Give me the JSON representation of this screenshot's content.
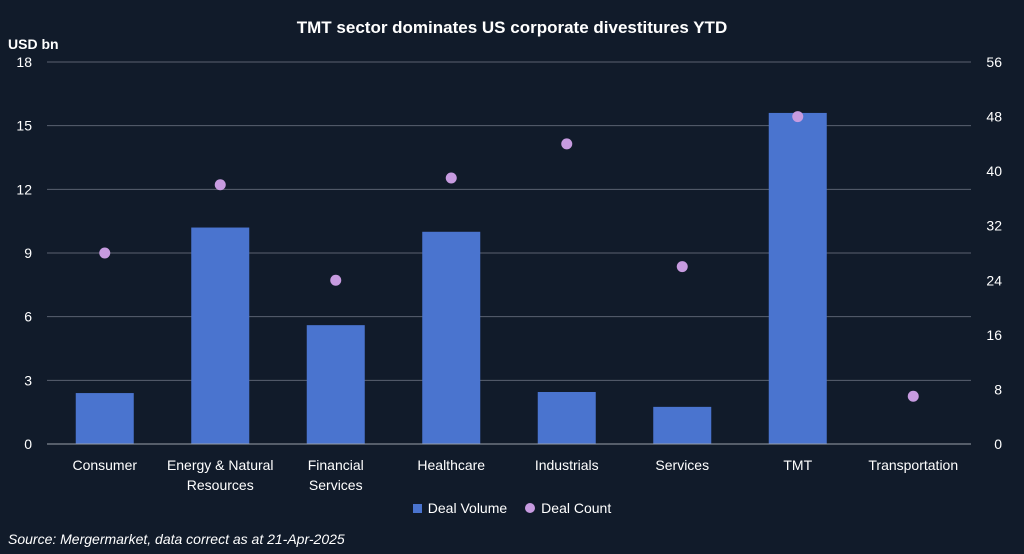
{
  "chart_data": {
    "type": "bar",
    "title": "TMT sector dominates US corporate divestitures YTD",
    "ylabel": "USD bn",
    "xlabel": "",
    "categories": [
      "Consumer",
      "Energy & Natural Resources",
      "Financial Services",
      "Healthcare",
      "Industrials",
      "Services",
      "TMT",
      "Transportation"
    ],
    "category_lines": [
      [
        "Consumer"
      ],
      [
        "Energy & Natural",
        "Resources"
      ],
      [
        "Financial",
        "Services"
      ],
      [
        "Healthcare"
      ],
      [
        "Industrials"
      ],
      [
        "Services"
      ],
      [
        "TMT"
      ],
      [
        "Transportation"
      ]
    ],
    "series": [
      {
        "name": "Deal Volume",
        "kind": "bar",
        "axis": "left",
        "values": [
          2.4,
          10.2,
          5.6,
          10.0,
          2.45,
          1.75,
          15.6,
          0
        ]
      },
      {
        "name": "Deal Count",
        "kind": "scatter",
        "axis": "right",
        "values": [
          28,
          38,
          24,
          39,
          44,
          26,
          48,
          7
        ]
      }
    ],
    "ylim": [
      0,
      18
    ],
    "yticks": [
      0,
      3,
      6,
      9,
      12,
      15,
      18
    ],
    "y2lim": [
      0,
      56
    ],
    "y2ticks": [
      0,
      8,
      16,
      24,
      32,
      40,
      48,
      56
    ],
    "grid": true,
    "legend_position": "bottom-center"
  },
  "colors": {
    "background": "#111b2a",
    "bar": "#4a74cf",
    "dot": "#c79be0",
    "grid": "#5a6270"
  },
  "source": "Source: Mergermarket, data correct as at 21-Apr-2025"
}
